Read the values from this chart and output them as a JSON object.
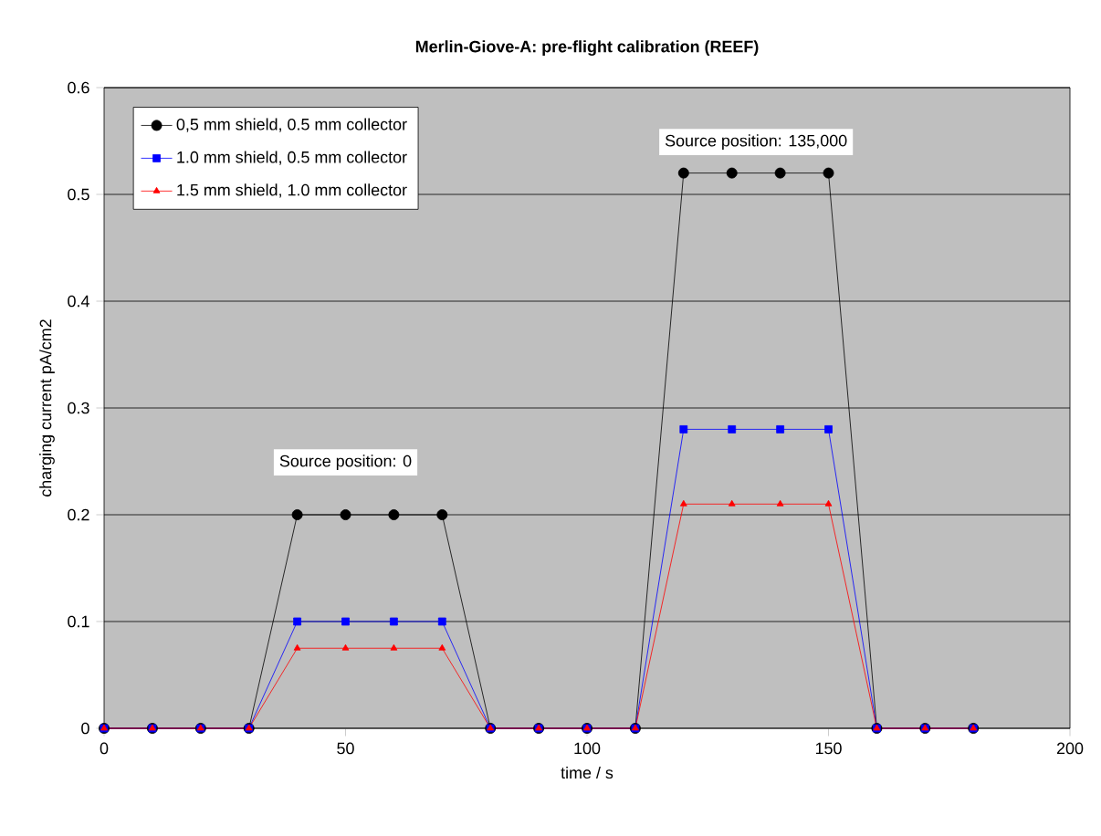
{
  "chart_data": {
    "type": "line",
    "title": "Merlin-Giove-A: pre-flight calibration (REEF)",
    "xlabel": "time / s",
    "ylabel": "charging current pA/cm2",
    "x": [
      0,
      10,
      20,
      30,
      40,
      50,
      60,
      70,
      80,
      90,
      100,
      110,
      120,
      130,
      140,
      150,
      160,
      170,
      180
    ],
    "series": [
      {
        "name": "0,5 mm shield, 0.5 mm collector",
        "color": "#000000",
        "marker": "circle",
        "values": [
          0,
          0,
          0,
          0,
          0.2,
          0.2,
          0.2,
          0.2,
          0,
          0,
          0,
          0,
          0.52,
          0.52,
          0.52,
          0.52,
          0,
          0,
          0
        ]
      },
      {
        "name": "1.0 mm shield, 0.5 mm collector",
        "color": "#0000ff",
        "marker": "square",
        "values": [
          0,
          0,
          0,
          0,
          0.1,
          0.1,
          0.1,
          0.1,
          0,
          0,
          0,
          0,
          0.28,
          0.28,
          0.28,
          0.28,
          0,
          0,
          0
        ]
      },
      {
        "name": "1.5 mm shield, 1.0 mm collector",
        "color": "#ff0000",
        "marker": "triangle",
        "values": [
          0,
          0,
          0,
          0,
          0.075,
          0.075,
          0.075,
          0.075,
          0,
          0,
          0,
          0,
          0.21,
          0.21,
          0.21,
          0.21,
          0,
          0,
          0
        ]
      }
    ],
    "xlim": [
      0,
      200
    ],
    "xticks": [
      0,
      50,
      100,
      150,
      200
    ],
    "ylim": [
      0,
      0.6
    ],
    "yticks": [
      0,
      0.1,
      0.2,
      0.3,
      0.4,
      0.5,
      0.6
    ],
    "grid": "y",
    "legend": "top left",
    "line_style": "solid",
    "annotations": [
      "Source position: 0",
      "Source position: 135,000"
    ]
  }
}
